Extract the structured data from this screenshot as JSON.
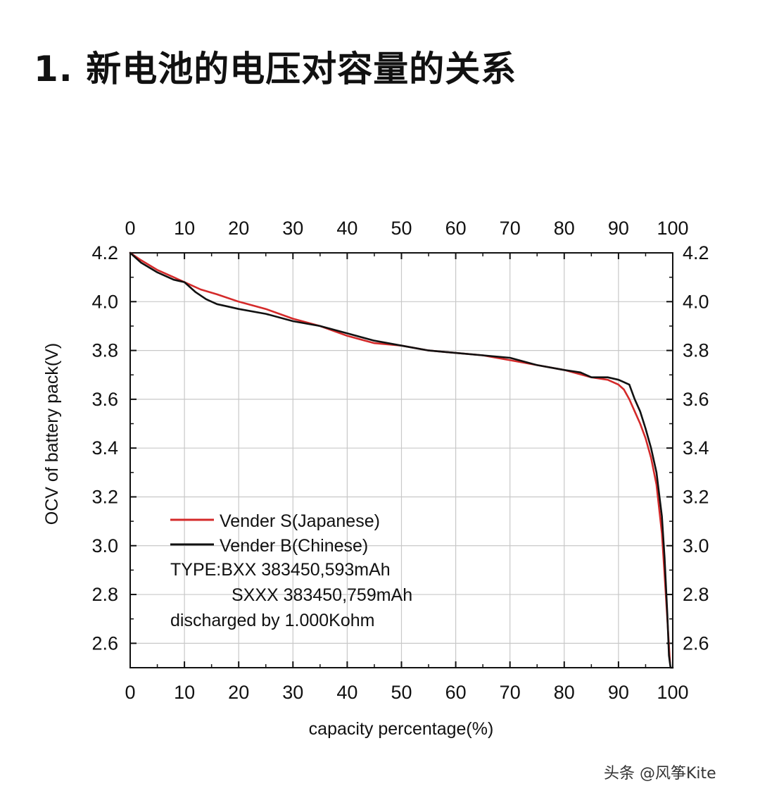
{
  "page": {
    "heading": "1. 新电池的电压对容量的关系",
    "watermark": "头条 @风筝Kite"
  },
  "colors": {
    "series_s": "#d42a2a",
    "series_b": "#111111",
    "grid": "#c8c8c8",
    "axis": "#111111"
  },
  "chart_data": {
    "type": "line",
    "xlabel": "capacity percentage(%)",
    "ylabel": "OCV of battery pack(V)",
    "xlim": [
      0,
      100
    ],
    "ylim": [
      2.5,
      4.2
    ],
    "x_ticks": [
      0,
      10,
      20,
      30,
      40,
      50,
      60,
      70,
      80,
      90,
      100
    ],
    "y_ticks": [
      2.6,
      2.8,
      3.0,
      3.2,
      3.4,
      3.6,
      3.8,
      4.0,
      4.2
    ],
    "grid": true,
    "mirror_axes": true,
    "legend_position": "lower-left",
    "series": [
      {
        "name": "Vender S(Japanese)",
        "x": [
          0,
          2,
          5,
          8,
          10,
          13,
          16,
          20,
          25,
          30,
          35,
          40,
          45,
          50,
          55,
          60,
          65,
          70,
          75,
          80,
          85,
          88,
          90,
          91,
          92,
          93,
          94,
          95,
          96,
          97,
          98,
          98.5,
          99,
          99.5
        ],
        "y": [
          4.2,
          4.17,
          4.13,
          4.1,
          4.08,
          4.05,
          4.03,
          4.0,
          3.97,
          3.93,
          3.9,
          3.86,
          3.83,
          3.82,
          3.8,
          3.79,
          3.78,
          3.76,
          3.74,
          3.72,
          3.69,
          3.68,
          3.66,
          3.64,
          3.6,
          3.55,
          3.5,
          3.44,
          3.36,
          3.25,
          3.05,
          2.88,
          2.7,
          2.52
        ]
      },
      {
        "name": "Vender B(Chinese)",
        "x": [
          0,
          2,
          5,
          8,
          10,
          12,
          14,
          16,
          18,
          20,
          25,
          30,
          35,
          40,
          45,
          50,
          55,
          60,
          65,
          70,
          75,
          80,
          83,
          85,
          88,
          90,
          91,
          92,
          93,
          94,
          95,
          96,
          97,
          98,
          98.5,
          99,
          99.3,
          99.6,
          100
        ],
        "y": [
          4.2,
          4.16,
          4.12,
          4.09,
          4.08,
          4.04,
          4.01,
          3.99,
          3.98,
          3.97,
          3.95,
          3.92,
          3.9,
          3.87,
          3.84,
          3.82,
          3.8,
          3.79,
          3.78,
          3.77,
          3.74,
          3.72,
          3.71,
          3.69,
          3.69,
          3.68,
          3.67,
          3.66,
          3.6,
          3.55,
          3.48,
          3.4,
          3.3,
          3.12,
          2.95,
          2.72,
          2.55,
          2.5,
          2.5
        ]
      }
    ],
    "annotations": [
      "TYPE:BXX 383450,593mAh",
      "SXXX 383450,759mAh",
      "discharged by 1.000Kohm"
    ]
  }
}
